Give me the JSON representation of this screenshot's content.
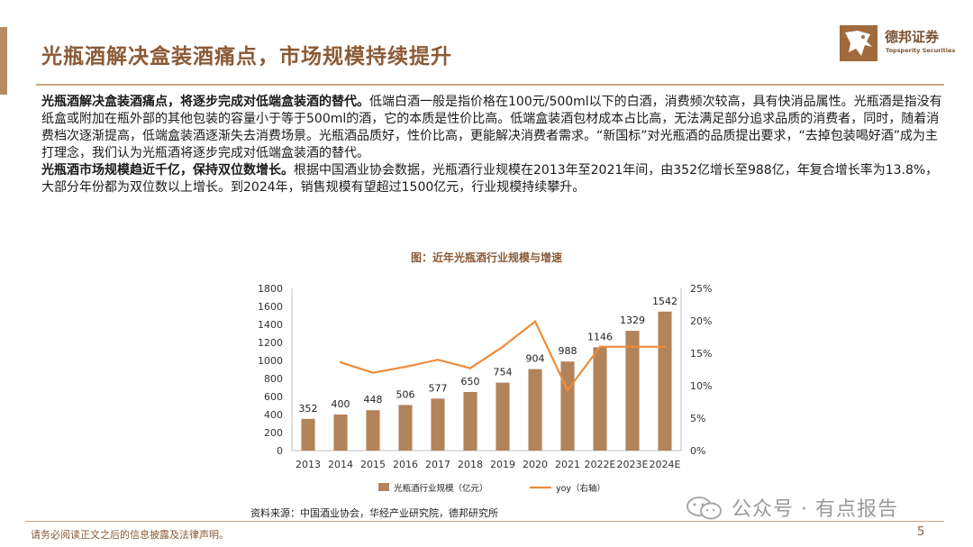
{
  "header": {
    "title": "光瓶酒解决盒装酒痛点，市场规模持续提升",
    "logo_cn": "德邦证券",
    "logo_en": "Topsperity Securities"
  },
  "body": {
    "p1_bold": "光瓶酒解决盒装酒痛点，将逐步完成对低端盒装酒的替代。",
    "p1_text": "低端白酒一般是指价格在100元/500ml以下的白酒，消费频次较高，具有快消品属性。光瓶酒是指没有纸盒或附加在瓶外部的其他包装的容量小于等于500ml的酒，它的本质是性价比高。低端盒装酒包材成本占比高，无法满足部分追求品质的消费者，同时，随着消费档次逐渐提高，低端盒装酒逐渐失去消费场景。光瓶酒品质好，性价比高，更能解决消费者需求。“新国标”对光瓶酒的品质提出要求，“去掉包装喝好酒”成为主打理念，我们认为光瓶酒将逐步完成对低端盒装酒的替代。",
    "p2_bold": "光瓶酒市场规模趋近千亿，保持双位数增长。",
    "p2_text": "根据中国酒业协会数据，光瓶酒行业规模在2013年至2021年间，由352亿增长至988亿，年复合增长率为13.8%，大部分年份都为双位数以上增长。到2024年，销售规模有望超过1500亿元，行业规模持续攀升。"
  },
  "chart_data": {
    "type": "bar+line",
    "title": "图：近年光瓶酒行业规模与增速",
    "categories": [
      "2013",
      "2014",
      "2015",
      "2016",
      "2017",
      "2018",
      "2019",
      "2020",
      "2021",
      "2022E",
      "2023E",
      "2024E"
    ],
    "series": [
      {
        "name": "光瓶酒行业规模（亿元）",
        "type": "bar",
        "axis": "left",
        "values": [
          352,
          400,
          448,
          506,
          577,
          650,
          754,
          904,
          988,
          1146,
          1329,
          1542
        ],
        "data_labels": [
          "352",
          "400",
          "448",
          "506",
          "577",
          "650",
          "754",
          "904",
          "988",
          "1146",
          "1329",
          "1542"
        ]
      },
      {
        "name": "yoy（右轴）",
        "type": "line",
        "axis": "right",
        "values": [
          null,
          13.6,
          12.0,
          12.9,
          14.0,
          12.7,
          16.0,
          19.9,
          9.3,
          16.0,
          16.0,
          16.0
        ]
      }
    ],
    "left_axis": {
      "min": 0,
      "max": 1800,
      "ticks": [
        "0",
        "200",
        "400",
        "600",
        "800",
        "1000",
        "1200",
        "1400",
        "1600",
        "1800"
      ]
    },
    "right_axis": {
      "min": 0,
      "max": 25,
      "ticks": [
        "0%",
        "5%",
        "10%",
        "15%",
        "20%",
        "25%"
      ]
    },
    "legend_position": "bottom",
    "colors": {
      "bar": "#b3835a",
      "line": "#ee8c3b",
      "axis": "#bfbfbf"
    }
  },
  "footer": {
    "source": "资料来源：中国酒业协会，华经产业研究院，德邦研究所",
    "watermark": "公众号 · 有点报告",
    "disclaimer": "请务必阅读正文之后的信息披露及法律声明。",
    "page_number": "5"
  }
}
